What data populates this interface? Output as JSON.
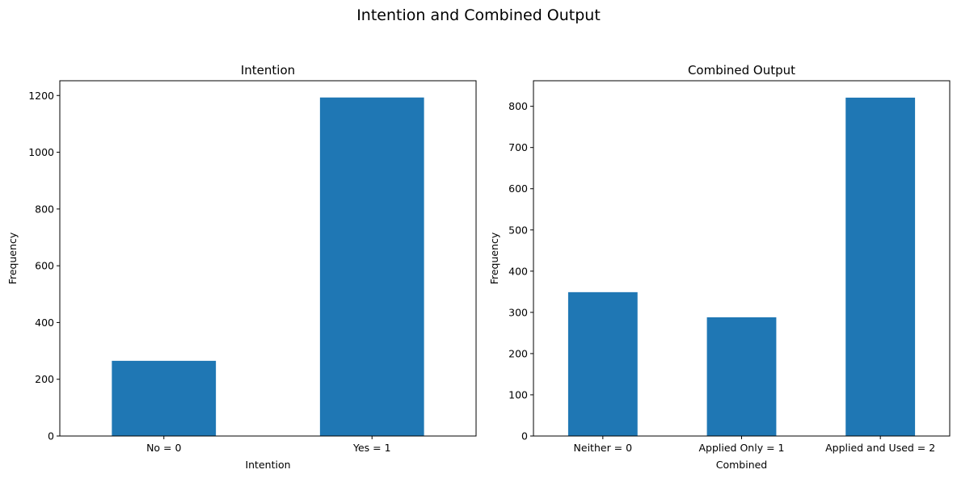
{
  "figure": {
    "suptitle": "Intention and Combined Output",
    "bar_color": "#1f77b4"
  },
  "chart_data": [
    {
      "type": "bar",
      "title": "Intention",
      "xlabel": "Intention",
      "ylabel": "Frequency",
      "categories": [
        "No = 0",
        "Yes = 1"
      ],
      "values": [
        265,
        1193
      ],
      "ylim": [
        0,
        1252
      ],
      "yticks": [
        0,
        200,
        400,
        600,
        800,
        1000,
        1200
      ],
      "grid": false
    },
    {
      "type": "bar",
      "title": "Combined Output",
      "xlabel": "Combined",
      "ylabel": "Frequency",
      "categories": [
        "Neither = 0",
        "Applied Only = 1",
        "Applied and Used = 2"
      ],
      "values": [
        349,
        288,
        821
      ],
      "ylim": [
        0,
        862
      ],
      "yticks": [
        0,
        100,
        200,
        300,
        400,
        500,
        600,
        700,
        800
      ],
      "grid": false
    }
  ]
}
